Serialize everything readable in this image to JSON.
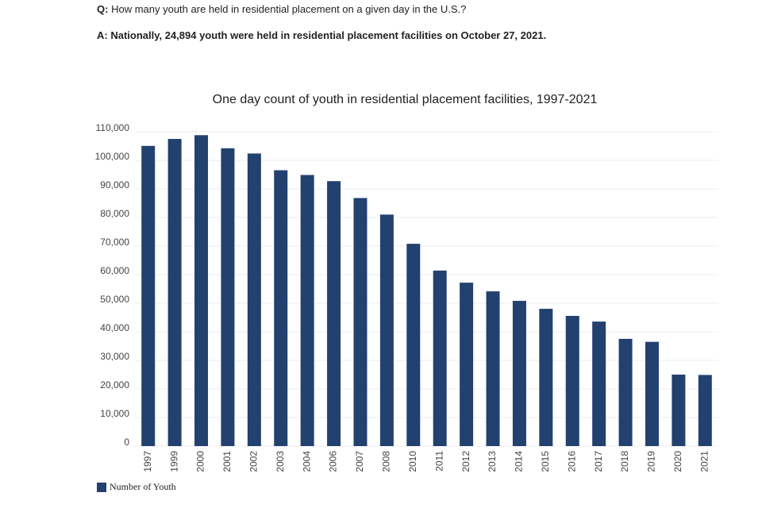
{
  "question_label": "Q:",
  "question": "How many youth are held in residential placement on a given day in the U.S.?",
  "answer_label": "A:",
  "answer": "Nationally, 24,894 youth were held in residential placement facilities on October 27, 2021.",
  "chart_data": {
    "type": "bar",
    "title": "One day count of youth in residential placement facilities, 1997-2021",
    "categories": [
      "1997",
      "1999",
      "2000",
      "2001",
      "2002",
      "2003",
      "2004",
      "2006",
      "2007",
      "2008",
      "2010",
      "2011",
      "2012",
      "2013",
      "2014",
      "2015",
      "2016",
      "2017",
      "2018",
      "2019",
      "2020",
      "2021"
    ],
    "series": [
      {
        "name": "Number of Youth",
        "color": "#22416f",
        "values": [
          105055,
          107493,
          108802,
          104219,
          102388,
          96531,
          94875,
          92721,
          86814,
          81015,
          70792,
          61423,
          57190,
          54148,
          50821,
          48043,
          45567,
          43580,
          37529,
          36479,
          25014,
          24894
        ]
      }
    ],
    "ylim": [
      0,
      110000
    ],
    "yticks": [
      0,
      {
        "value": 10000,
        "label": "10,000"
      },
      {
        "value": 20000,
        "label": "20,000"
      },
      {
        "value": 30000,
        "label": "30,000"
      },
      {
        "value": 40000,
        "label": "40,000"
      },
      {
        "value": 50000,
        "label": "50,000"
      },
      {
        "value": 60000,
        "label": "60,000"
      },
      {
        "value": 70000,
        "label": "70,000"
      },
      {
        "value": 80000,
        "label": "80,000"
      },
      {
        "value": 90000,
        "label": "90,000"
      },
      {
        "value": 100000,
        "label": "100,000"
      },
      {
        "value": 110000,
        "label": "110,000"
      }
    ],
    "grid": true,
    "legend": "bottom-left"
  }
}
